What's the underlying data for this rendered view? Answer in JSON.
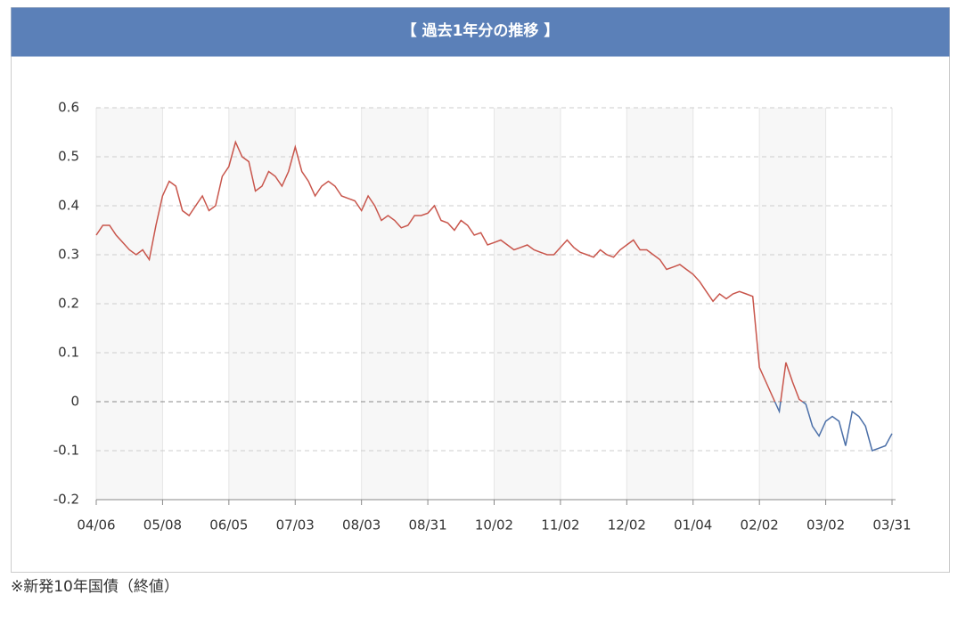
{
  "header": {
    "title": "【 過去1年分の推移 】"
  },
  "chart_data": {
    "type": "line",
    "categories": [
      "04/06",
      null,
      null,
      null,
      null,
      null,
      null,
      null,
      null,
      null,
      "05/08",
      null,
      null,
      null,
      null,
      null,
      null,
      null,
      null,
      null,
      "06/05",
      null,
      null,
      null,
      null,
      null,
      null,
      null,
      null,
      null,
      "07/03",
      null,
      null,
      null,
      null,
      null,
      null,
      null,
      null,
      null,
      "08/03",
      null,
      null,
      null,
      null,
      null,
      null,
      null,
      null,
      null,
      "08/31",
      null,
      null,
      null,
      null,
      null,
      null,
      null,
      null,
      null,
      "10/02",
      null,
      null,
      null,
      null,
      null,
      null,
      null,
      null,
      null,
      "11/02",
      null,
      null,
      null,
      null,
      null,
      null,
      null,
      null,
      null,
      "12/02",
      null,
      null,
      null,
      null,
      null,
      null,
      null,
      null,
      null,
      "01/04",
      null,
      null,
      null,
      null,
      null,
      null,
      null,
      null,
      null,
      "02/02",
      null,
      null,
      null,
      null,
      null,
      null,
      null,
      null,
      null,
      "03/02",
      null,
      null,
      null,
      null,
      null,
      null,
      null,
      null,
      null,
      "03/31"
    ],
    "series": [
      {
        "color": "#c8554b",
        "negative_color": "#4b6fa8",
        "values": [
          0.34,
          0.36,
          0.36,
          0.34,
          0.325,
          0.31,
          0.3,
          0.31,
          0.29,
          0.36,
          0.42,
          0.45,
          0.44,
          0.39,
          0.38,
          0.4,
          0.42,
          0.39,
          0.4,
          0.46,
          0.48,
          0.53,
          0.5,
          0.49,
          0.43,
          0.44,
          0.47,
          0.46,
          0.44,
          0.47,
          0.52,
          0.47,
          0.45,
          0.42,
          0.44,
          0.45,
          0.44,
          0.42,
          0.415,
          0.41,
          0.39,
          0.42,
          0.4,
          0.37,
          0.38,
          0.37,
          0.355,
          0.36,
          0.38,
          0.38,
          0.385,
          0.4,
          0.37,
          0.365,
          0.35,
          0.37,
          0.36,
          0.34,
          0.345,
          0.32,
          0.325,
          0.33,
          0.32,
          0.31,
          0.315,
          0.32,
          0.31,
          0.305,
          0.3,
          0.3,
          0.315,
          0.33,
          0.315,
          0.305,
          0.3,
          0.295,
          0.31,
          0.3,
          0.295,
          0.31,
          0.32,
          0.33,
          0.31,
          0.31,
          0.3,
          0.29,
          0.27,
          0.275,
          0.28,
          0.27,
          0.26,
          0.245,
          0.225,
          0.205,
          0.22,
          0.21,
          0.22,
          0.225,
          0.22,
          0.215,
          0.07,
          0.04,
          0.01,
          -0.02,
          0.08,
          0.04,
          0.005,
          -0.005,
          -0.05,
          -0.07,
          -0.04,
          -0.03,
          -0.04,
          -0.09,
          -0.02,
          -0.03,
          -0.05,
          -0.1,
          -0.095,
          -0.09,
          -0.065
        ]
      }
    ],
    "ylim": [
      -0.2,
      0.6
    ],
    "yticks": [
      -0.2,
      -0.1,
      0,
      0.1,
      0.2,
      0.3,
      0.4,
      0.5,
      0.6
    ],
    "grid": true
  },
  "footer": {
    "note": "※新発10年国債（終値）"
  }
}
